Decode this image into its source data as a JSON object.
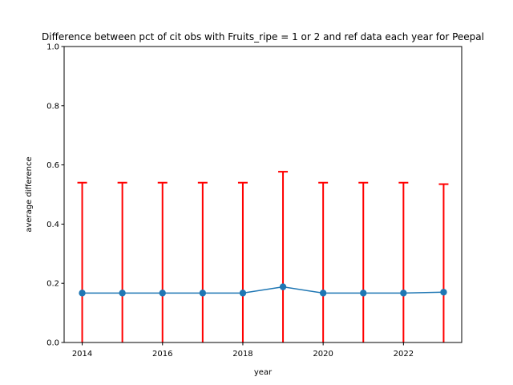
{
  "chart_data": {
    "type": "line",
    "title": "Difference between pct of cit obs with Fruits_ripe = 1 or 2 and ref data each year for Peepal",
    "xlabel": "year",
    "ylabel": "average difference",
    "x": [
      2014,
      2015,
      2016,
      2017,
      2018,
      2019,
      2020,
      2021,
      2022,
      2023
    ],
    "series": [
      {
        "values": [
          0.167,
          0.167,
          0.167,
          0.167,
          0.167,
          0.188,
          0.167,
          0.167,
          0.167,
          0.17
        ],
        "error_upper": [
          0.54,
          0.54,
          0.54,
          0.54,
          0.54,
          0.577,
          0.54,
          0.54,
          0.54,
          0.535
        ],
        "error_lower": [
          0.0,
          0.0,
          0.0,
          0.0,
          0.0,
          0.0,
          0.0,
          0.0,
          0.0,
          0.0
        ],
        "color": "#1f77b4",
        "error_color": "#ff0000",
        "marker": "circle"
      }
    ],
    "xlim": [
      2013.55,
      2023.45
    ],
    "ylim": [
      0.0,
      1.0
    ],
    "xticks": [
      "2014",
      "2016",
      "2018",
      "2020",
      "2022"
    ],
    "yticks": [
      "0.0",
      "0.2",
      "0.4",
      "0.6",
      "0.8",
      "1.0"
    ],
    "grid": false,
    "legend": "none"
  }
}
